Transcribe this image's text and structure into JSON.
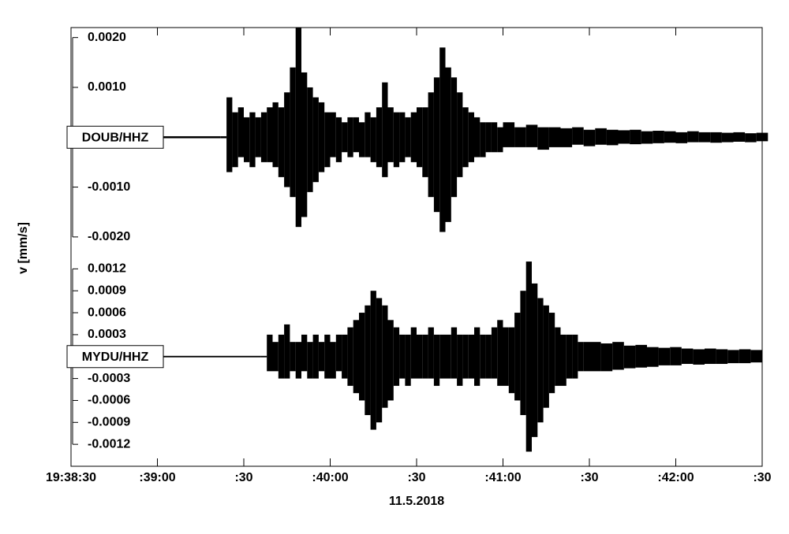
{
  "chart_data": {
    "type": "waveform",
    "ylabel": "v [mm/s]",
    "xlabel": "11.5.2018",
    "xlim": [
      "19:38:30",
      "19:42:30"
    ],
    "xticks": [
      "19:38:30",
      {
        "value": "19:39:00",
        "label": ":39:00"
      },
      {
        "value": "19:39:30",
        "label": ":30"
      },
      {
        "value": "19:40:00",
        "label": ":40:00"
      },
      {
        "value": "19:40:30",
        "label": ":30"
      },
      {
        "value": "19:41:00",
        "label": ":41:00"
      },
      {
        "value": "19:41:30",
        "label": ":30"
      },
      {
        "value": "19:42:00",
        "label": ":42:00"
      },
      {
        "value": "19:42:30",
        "label": ":30"
      }
    ],
    "color": "#000000",
    "panels": [
      {
        "station": "DOUB/HHZ",
        "ylim": [
          -0.0022,
          0.0022
        ],
        "yticks": [
          {
            "value": 0.002,
            "label": "0.0020"
          },
          {
            "value": 0.001,
            "label": "0.0010"
          },
          {
            "value": -0.001,
            "label": "-0.0010"
          },
          {
            "value": -0.002,
            "label": "-0.0020"
          }
        ],
        "x": [
          "19:38:30",
          "19:39:22",
          "19:39:24",
          "19:39:26",
          "19:39:28",
          "19:39:30",
          "19:39:32",
          "19:39:34",
          "19:39:36",
          "19:39:38",
          "19:39:40",
          "19:39:42",
          "19:39:44",
          "19:39:46",
          "19:39:48",
          "19:39:50",
          "19:39:52",
          "19:39:54",
          "19:39:56",
          "19:39:58",
          "19:40:00",
          "19:40:02",
          "19:40:04",
          "19:40:06",
          "19:40:08",
          "19:40:10",
          "19:40:12",
          "19:40:14",
          "19:40:16",
          "19:40:18",
          "19:40:20",
          "19:40:22",
          "19:40:24",
          "19:40:26",
          "19:40:28",
          "19:40:30",
          "19:40:32",
          "19:40:34",
          "19:40:36",
          "19:40:38",
          "19:40:40",
          "19:40:42",
          "19:40:44",
          "19:40:46",
          "19:40:48",
          "19:40:50",
          "19:40:52",
          "19:40:54",
          "19:40:56",
          "19:40:58",
          "19:41:00",
          "19:41:04",
          "19:41:08",
          "19:41:12",
          "19:41:16",
          "19:41:20",
          "19:41:24",
          "19:41:28",
          "19:41:32",
          "19:41:36",
          "19:41:40",
          "19:41:44",
          "19:41:48",
          "19:41:52",
          "19:41:56",
          "19:42:00",
          "19:42:04",
          "19:42:08",
          "19:42:12",
          "19:42:16",
          "19:42:20",
          "19:42:24",
          "19:42:28"
        ],
        "upper": [
          2e-05,
          2e-05,
          0.0008,
          0.0005,
          0.0006,
          0.0004,
          0.0005,
          0.0004,
          0.0005,
          0.0006,
          0.0007,
          0.0006,
          0.0009,
          0.0014,
          0.0022,
          0.0013,
          0.001,
          0.0008,
          0.0007,
          0.0005,
          0.0005,
          0.0004,
          0.0003,
          0.0004,
          0.0004,
          0.0003,
          0.0005,
          0.0004,
          0.0006,
          0.0011,
          0.0006,
          0.0005,
          0.0005,
          0.0004,
          0.0005,
          0.0006,
          0.0006,
          0.0009,
          0.0012,
          0.0018,
          0.0014,
          0.0012,
          0.0009,
          0.0006,
          0.0005,
          0.0004,
          0.0003,
          0.0003,
          0.0003,
          0.0002,
          0.0003,
          0.0002,
          0.00025,
          0.0002,
          0.0002,
          0.00018,
          0.0002,
          0.00015,
          0.00018,
          0.00015,
          0.00014,
          0.00015,
          0.00012,
          0.00013,
          0.00012,
          0.0001,
          0.00012,
          0.0001,
          0.0001,
          9e-05,
          0.0001,
          8e-05,
          9e-05
        ],
        "lower": [
          -2e-05,
          -2e-05,
          -0.0007,
          -0.0006,
          -0.0004,
          -0.0005,
          -0.0006,
          -0.0004,
          -0.0005,
          -0.0005,
          -0.0006,
          -0.0008,
          -0.001,
          -0.0012,
          -0.0018,
          -0.0016,
          -0.0011,
          -0.0009,
          -0.0007,
          -0.0006,
          -0.0004,
          -0.0005,
          -0.0003,
          -0.0004,
          -0.0003,
          -0.0004,
          -0.0004,
          -0.0005,
          -0.0006,
          -0.0008,
          -0.0005,
          -0.0006,
          -0.0005,
          -0.0004,
          -0.0005,
          -0.0006,
          -0.0008,
          -0.0012,
          -0.0015,
          -0.0019,
          -0.0017,
          -0.0012,
          -0.0008,
          -0.0006,
          -0.0005,
          -0.0004,
          -0.0004,
          -0.0003,
          -0.0003,
          -0.0003,
          -0.0002,
          -0.0002,
          -0.0002,
          -0.00025,
          -0.0002,
          -0.0002,
          -0.00015,
          -0.00018,
          -0.00015,
          -0.00016,
          -0.00013,
          -0.00014,
          -0.00013,
          -0.00012,
          -0.00011,
          -0.00012,
          -0.0001,
          -0.0001,
          -0.00011,
          -0.0001,
          -9e-05,
          -0.0001,
          -8e-05
        ]
      },
      {
        "station": "MYDU/HHZ",
        "ylim": [
          -0.0015,
          0.0015
        ],
        "yticks": [
          0.0012,
          0.0009,
          0.0006,
          0.0003,
          -0.0003,
          -0.0006,
          -0.0009,
          -0.0012
        ],
        "x": [
          "19:38:30",
          "19:39:36",
          "19:39:38",
          "19:39:40",
          "19:39:42",
          "19:39:44",
          "19:39:46",
          "19:39:48",
          "19:39:50",
          "19:39:52",
          "19:39:54",
          "19:39:56",
          "19:39:58",
          "19:40:00",
          "19:40:02",
          "19:40:04",
          "19:40:06",
          "19:40:08",
          "19:40:10",
          "19:40:12",
          "19:40:14",
          "19:40:16",
          "19:40:18",
          "19:40:20",
          "19:40:22",
          "19:40:24",
          "19:40:26",
          "19:40:28",
          "19:40:30",
          "19:40:32",
          "19:40:34",
          "19:40:36",
          "19:40:38",
          "19:40:40",
          "19:40:42",
          "19:40:44",
          "19:40:46",
          "19:40:48",
          "19:40:50",
          "19:40:52",
          "19:40:54",
          "19:40:56",
          "19:40:58",
          "19:41:00",
          "19:41:02",
          "19:41:04",
          "19:41:06",
          "19:41:08",
          "19:41:10",
          "19:41:12",
          "19:41:14",
          "19:41:16",
          "19:41:18",
          "19:41:20",
          "19:41:22",
          "19:41:24",
          "19:41:26",
          "19:41:28",
          "19:41:30",
          "19:41:34",
          "19:41:38",
          "19:41:42",
          "19:41:46",
          "19:41:50",
          "19:41:54",
          "19:41:58",
          "19:42:02",
          "19:42:06",
          "19:42:10",
          "19:42:14",
          "19:42:18",
          "19:42:22",
          "19:42:26"
        ],
        "upper": [
          1e-05,
          1e-05,
          0.0003,
          0.0002,
          0.0003,
          0.00044,
          0.0002,
          0.0002,
          0.0003,
          0.0002,
          0.0003,
          0.0002,
          0.0003,
          0.0002,
          0.0003,
          0.0003,
          0.0004,
          0.0005,
          0.0006,
          0.0007,
          0.0009,
          0.0008,
          0.0007,
          0.0005,
          0.0004,
          0.0003,
          0.0003,
          0.0004,
          0.0003,
          0.0003,
          0.0004,
          0.0003,
          0.0003,
          0.0003,
          0.0004,
          0.0003,
          0.0003,
          0.0003,
          0.0004,
          0.0003,
          0.0003,
          0.0004,
          0.0005,
          0.0004,
          0.0004,
          0.0006,
          0.0009,
          0.0013,
          0.001,
          0.0008,
          0.0007,
          0.0006,
          0.0004,
          0.0003,
          0.0003,
          0.0003,
          0.0002,
          0.0002,
          0.0002,
          0.00018,
          0.0002,
          0.00015,
          0.00016,
          0.00013,
          0.00012,
          0.00013,
          0.00011,
          0.0001,
          0.00011,
          0.0001,
          9e-05,
          0.0001,
          9e-05
        ],
        "lower": [
          -1e-05,
          -1e-05,
          -0.0002,
          -0.0002,
          -0.0003,
          -0.0003,
          -0.0002,
          -0.0003,
          -0.0002,
          -0.0003,
          -0.0003,
          -0.0002,
          -0.0003,
          -0.0003,
          -0.0002,
          -0.0003,
          -0.0004,
          -0.0005,
          -0.0006,
          -0.0008,
          -0.001,
          -0.0009,
          -0.0007,
          -0.0006,
          -0.0004,
          -0.0003,
          -0.0004,
          -0.0003,
          -0.0003,
          -0.0003,
          -0.0003,
          -0.0004,
          -0.0003,
          -0.0003,
          -0.0003,
          -0.0004,
          -0.0003,
          -0.0003,
          -0.0004,
          -0.0003,
          -0.0003,
          -0.0003,
          -0.0004,
          -0.0004,
          -0.0005,
          -0.0006,
          -0.0008,
          -0.0013,
          -0.0011,
          -0.0009,
          -0.0007,
          -0.0005,
          -0.0004,
          -0.0004,
          -0.0003,
          -0.0003,
          -0.0002,
          -0.0002,
          -0.0002,
          -0.0002,
          -0.00018,
          -0.00016,
          -0.00015,
          -0.00014,
          -0.00012,
          -0.00012,
          -0.0001,
          -0.00011,
          -0.0001,
          -0.0001,
          -9e-05,
          -9e-05,
          -8e-05
        ]
      }
    ]
  }
}
